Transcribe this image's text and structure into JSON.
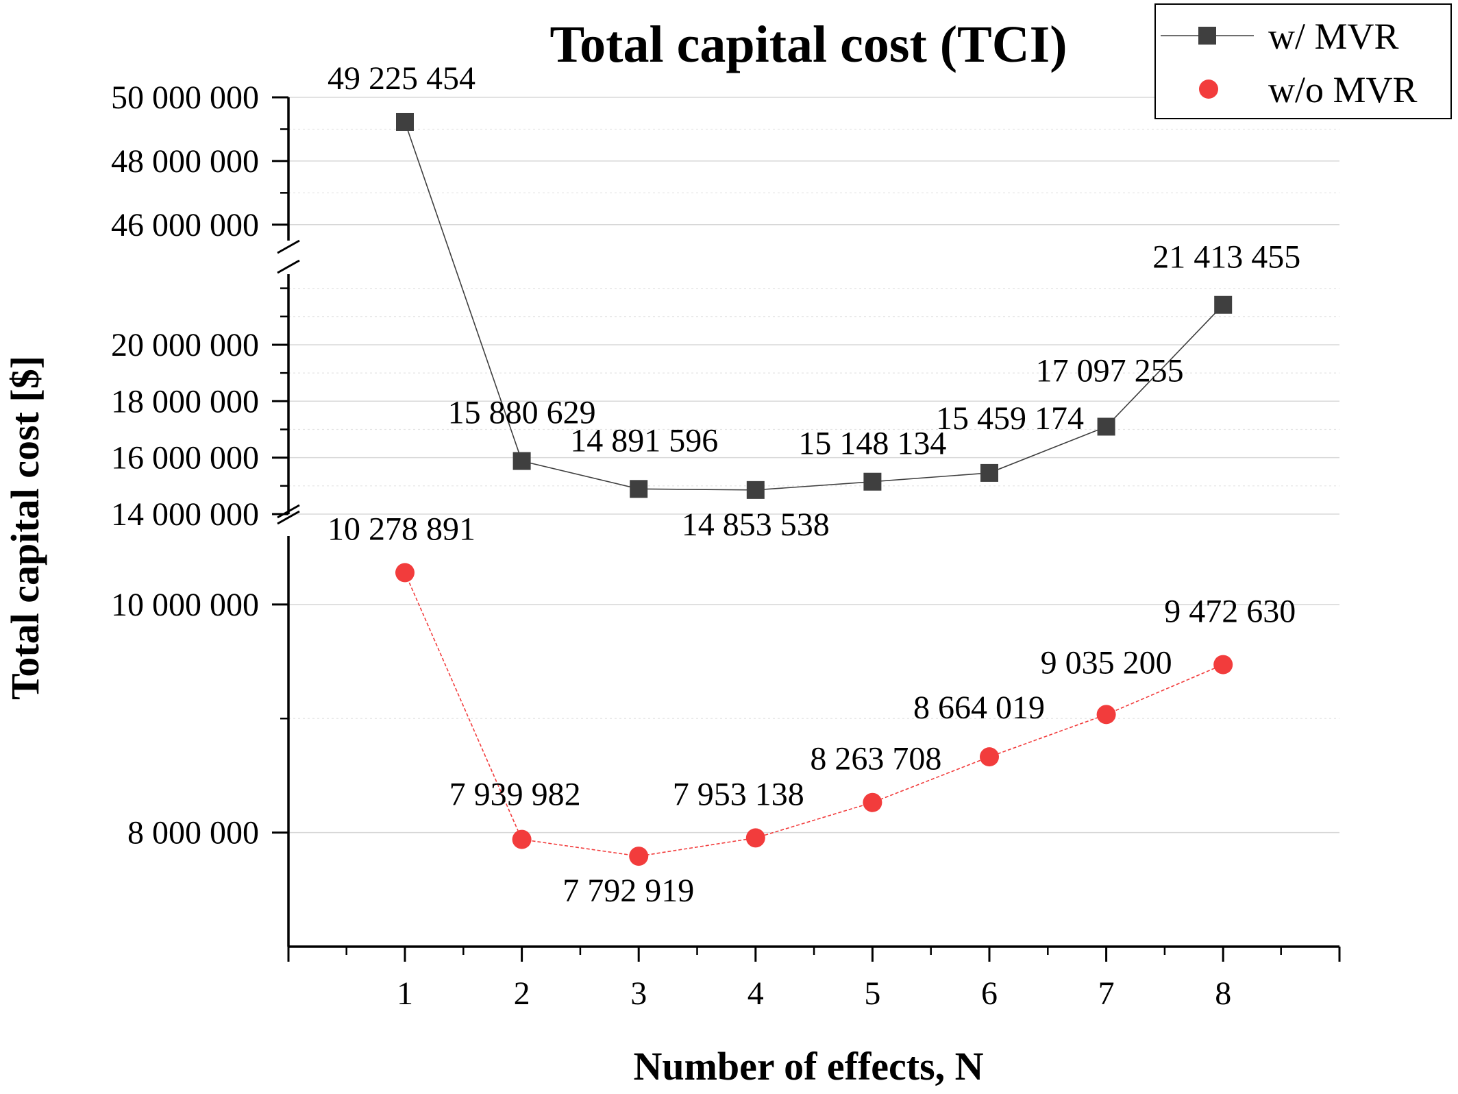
{
  "chart_data": {
    "type": "line",
    "title": "Total capital cost (TCI)",
    "xlabel": "Number of effects, N",
    "ylabel": "Total capital cost [$]",
    "x": [
      1,
      2,
      3,
      4,
      5,
      6,
      7,
      8
    ],
    "xlim": [
      0,
      9
    ],
    "y_axis_breaks": [
      {
        "range": [
          7000000,
          10600000
        ],
        "ticks": [
          "8 000 000",
          "10 000 000"
        ]
      },
      {
        "range": [
          14000000,
          22500000
        ],
        "ticks": [
          "14 000 000",
          "16 000 000",
          "18 000 000",
          "20 000 000"
        ]
      },
      {
        "range": [
          45500000,
          50000000
        ],
        "ticks": [
          "46 000 000",
          "48 000 000",
          "50 000 000"
        ]
      }
    ],
    "grid": true,
    "legend_position": "top-right",
    "series": [
      {
        "name": "w/ MVR",
        "color": "#3f3f3f",
        "marker": "square",
        "values": [
          49225454,
          15880629,
          14891596,
          14853538,
          15148134,
          15459174,
          17097255,
          21413455
        ],
        "labels": [
          "49 225 454",
          "15 880 629",
          "14 891 596",
          "14 853 538",
          "15 148 134",
          "15 459 174",
          "17 097 255",
          "21 413 455"
        ]
      },
      {
        "name": "w/o MVR",
        "color": "#f23c3c",
        "marker": "circle",
        "values": [
          10278891,
          7939982,
          7792919,
          7953138,
          8263708,
          8664019,
          9035200,
          9472630
        ],
        "labels": [
          "10 278 891",
          "7 939 982",
          "7 792 919",
          "7 953 138",
          "8 263 708",
          "8 664 019",
          "9 035 200",
          "9 472 630"
        ]
      }
    ]
  }
}
